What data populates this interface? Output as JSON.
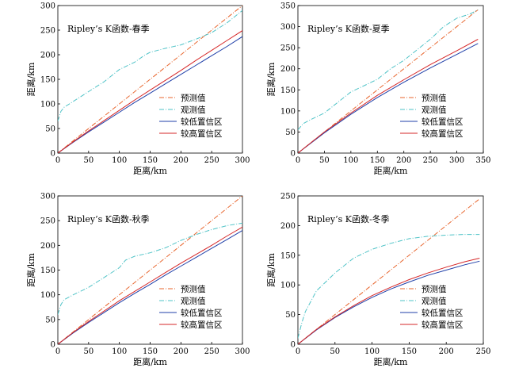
{
  "chart_data": [
    {
      "type": "line",
      "title": "Ripley’s K函数-春季",
      "xlabel": "距离/km",
      "ylabel": "距离/km",
      "xlim": [
        0,
        300
      ],
      "ylim": [
        0,
        300
      ],
      "xticks": [
        0,
        50,
        100,
        150,
        200,
        250,
        300
      ],
      "yticks": [
        0,
        50,
        100,
        150,
        200,
        250,
        300
      ],
      "legend_position": "bottom-right",
      "series": [
        {
          "name": "预测值",
          "color": "#e8662e",
          "dash": "dashdot",
          "x": [
            0,
            300
          ],
          "y": [
            0,
            300
          ]
        },
        {
          "name": "观测值",
          "color": "#4fc3c7",
          "dash": "dashdot",
          "x": [
            0,
            5,
            10,
            25,
            50,
            75,
            100,
            125,
            140,
            150,
            175,
            200,
            225,
            250,
            275,
            300
          ],
          "y": [
            65,
            85,
            93,
            105,
            125,
            145,
            170,
            185,
            198,
            205,
            213,
            220,
            232,
            245,
            265,
            290
          ]
        },
        {
          "name": "较低置信区",
          "color": "#1f3fa8",
          "dash": "solid",
          "x": [
            0,
            25,
            50,
            75,
            100,
            125,
            150,
            175,
            200,
            225,
            250,
            275,
            300
          ],
          "y": [
            0,
            22,
            43,
            63,
            83,
            103,
            122,
            141,
            160,
            179,
            198,
            217,
            237
          ]
        },
        {
          "name": "较高置信区",
          "color": "#d62728",
          "dash": "solid",
          "x": [
            0,
            25,
            50,
            75,
            100,
            125,
            150,
            175,
            200,
            225,
            250,
            275,
            300
          ],
          "y": [
            0,
            23,
            45,
            66,
            87,
            108,
            128,
            148,
            168,
            189,
            209,
            229,
            249
          ]
        }
      ]
    },
    {
      "type": "line",
      "title": "Ripley’s K函数-夏季",
      "xlabel": "距离/km",
      "ylabel": "距离/km",
      "xlim": [
        0,
        350
      ],
      "ylim": [
        0,
        350
      ],
      "xticks": [
        0,
        50,
        100,
        150,
        200,
        250,
        300,
        350
      ],
      "yticks": [
        0,
        50,
        100,
        150,
        200,
        250,
        300,
        350
      ],
      "legend_position": "bottom-right",
      "series": [
        {
          "name": "预测值",
          "color": "#e8662e",
          "dash": "dashdot",
          "x": [
            0,
            340
          ],
          "y": [
            0,
            340
          ]
        },
        {
          "name": "观测值",
          "color": "#4fc3c7",
          "dash": "dashdot",
          "x": [
            0,
            10,
            25,
            50,
            75,
            100,
            125,
            150,
            175,
            200,
            225,
            250,
            275,
            300,
            325,
            340
          ],
          "y": [
            55,
            70,
            80,
            95,
            120,
            145,
            160,
            175,
            200,
            220,
            245,
            270,
            300,
            320,
            330,
            340
          ]
        },
        {
          "name": "较低置信区",
          "color": "#1f3fa8",
          "dash": "solid",
          "x": [
            0,
            50,
            100,
            150,
            200,
            250,
            300,
            340
          ],
          "y": [
            0,
            48,
            92,
            132,
            168,
            202,
            234,
            260
          ]
        },
        {
          "name": "较高置信区",
          "color": "#d62728",
          "dash": "solid",
          "x": [
            0,
            50,
            100,
            150,
            200,
            250,
            300,
            340
          ],
          "y": [
            0,
            50,
            95,
            137,
            174,
            210,
            243,
            270
          ]
        }
      ]
    },
    {
      "type": "line",
      "title": "Ripley’s K函数-秋季",
      "xlabel": "距离/km",
      "ylabel": "距离/km",
      "xlim": [
        0,
        300
      ],
      "ylim": [
        0,
        300
      ],
      "xticks": [
        0,
        50,
        100,
        150,
        200,
        250,
        300
      ],
      "yticks": [
        0,
        50,
        100,
        150,
        200,
        250,
        300
      ],
      "legend_position": "bottom-right",
      "series": [
        {
          "name": "预测值",
          "color": "#e8662e",
          "dash": "dashdot",
          "x": [
            0,
            300
          ],
          "y": [
            0,
            300
          ]
        },
        {
          "name": "观测值",
          "color": "#4fc3c7",
          "dash": "dashdot",
          "x": [
            0,
            5,
            10,
            25,
            50,
            75,
            100,
            110,
            125,
            150,
            175,
            200,
            225,
            250,
            275,
            300
          ],
          "y": [
            60,
            80,
            90,
            100,
            115,
            135,
            155,
            170,
            178,
            185,
            195,
            210,
            222,
            232,
            240,
            245
          ]
        },
        {
          "name": "较低置信区",
          "color": "#1f3fa8",
          "dash": "solid",
          "x": [
            0,
            25,
            50,
            75,
            100,
            125,
            150,
            175,
            200,
            225,
            250,
            275,
            300
          ],
          "y": [
            0,
            23,
            44,
            64,
            84,
            103,
            121,
            140,
            158,
            176,
            194,
            212,
            230
          ]
        },
        {
          "name": "较高置信区",
          "color": "#d62728",
          "dash": "solid",
          "x": [
            0,
            25,
            50,
            75,
            100,
            125,
            150,
            175,
            200,
            225,
            250,
            275,
            300
          ],
          "y": [
            0,
            24,
            46,
            67,
            88,
            107,
            126,
            145,
            164,
            182,
            200,
            219,
            237
          ]
        }
      ]
    },
    {
      "type": "line",
      "title": "Ripley’s K函数-冬季",
      "xlabel": "距离/km",
      "ylabel": "距离/km",
      "xlim": [
        0,
        250
      ],
      "ylim": [
        0,
        250
      ],
      "xticks": [
        0,
        50,
        100,
        150,
        200,
        250
      ],
      "yticks": [
        0,
        50,
        100,
        150,
        200,
        250
      ],
      "legend_position": "bottom-right",
      "series": [
        {
          "name": "预测值",
          "color": "#e8662e",
          "dash": "dashdot",
          "x": [
            0,
            245
          ],
          "y": [
            0,
            245
          ]
        },
        {
          "name": "观测值",
          "color": "#4fc3c7",
          "dash": "dashdot",
          "x": [
            0,
            5,
            10,
            25,
            50,
            75,
            100,
            125,
            150,
            175,
            200,
            225,
            245
          ],
          "y": [
            10,
            35,
            55,
            90,
            120,
            145,
            160,
            170,
            178,
            182,
            184,
            185,
            185
          ]
        },
        {
          "name": "较低置信区",
          "color": "#1f3fa8",
          "dash": "solid",
          "x": [
            0,
            25,
            50,
            75,
            100,
            125,
            150,
            175,
            200,
            225,
            245
          ],
          "y": [
            0,
            24,
            45,
            63,
            79,
            93,
            105,
            116,
            125,
            134,
            140
          ]
        },
        {
          "name": "较高置信区",
          "color": "#d62728",
          "dash": "solid",
          "x": [
            0,
            25,
            50,
            75,
            100,
            125,
            150,
            175,
            200,
            225,
            245
          ],
          "y": [
            0,
            25,
            46,
            65,
            82,
            96,
            109,
            120,
            130,
            139,
            145
          ]
        }
      ]
    }
  ]
}
